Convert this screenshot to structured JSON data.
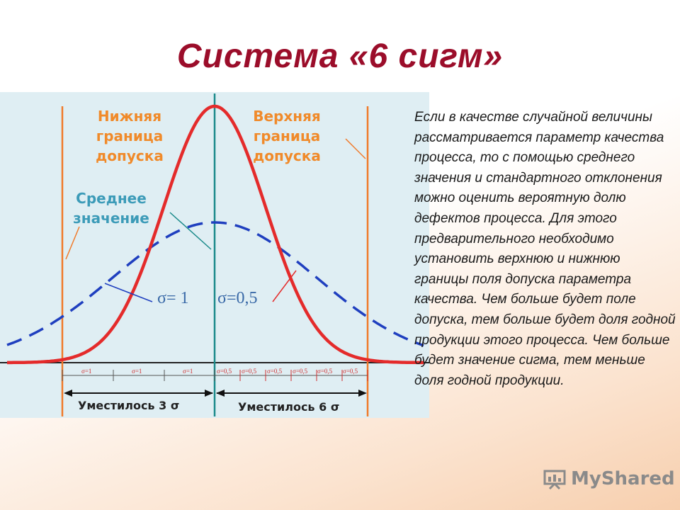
{
  "title": "Система «6 сигм»",
  "diagram": {
    "lower_limit_label": [
      "Нижняя",
      "граница",
      "допуска"
    ],
    "upper_limit_label": [
      "Верхняя",
      "граница",
      "допуска"
    ],
    "mean_label": [
      "Среднее",
      "значение"
    ],
    "sigma_wide_label": "σ= 1",
    "sigma_narrow_label": "σ=0,5",
    "fit3_label": "Уместилось 3 σ",
    "fit6_label": "Уместилось 6 σ",
    "sigma1_ticks": [
      "σ=1",
      "σ=1",
      "σ=1"
    ],
    "sigma05_ticks": [
      "σ=0,5",
      "σ=0,5",
      "σ=0,5",
      "σ=0,5",
      "σ=0,5",
      "σ=0,5"
    ],
    "colors": {
      "narrow_curve": "#e42b2b",
      "wide_curve": "#1f3fbf",
      "limit_lines": "#f07a2a",
      "mean_line": "#1a8a8a",
      "background": "#dfeef3"
    }
  },
  "body_text": "Если в качестве случайной величины рассматривается параметр качества процесса, то с помощью среднего значения и стандартного отклонения можно оценить вероятную долю дефектов процесса. Для этого предварительного необходимо установить верхнюю и нижнюю границы поля допуска параметра качества. Чем больше будет поле допуска, тем больше будет доля годной продукции этого процесса. Чем больше будет значение сигма, тем меньше доля годной продукции.",
  "watermark": "MyShared"
}
